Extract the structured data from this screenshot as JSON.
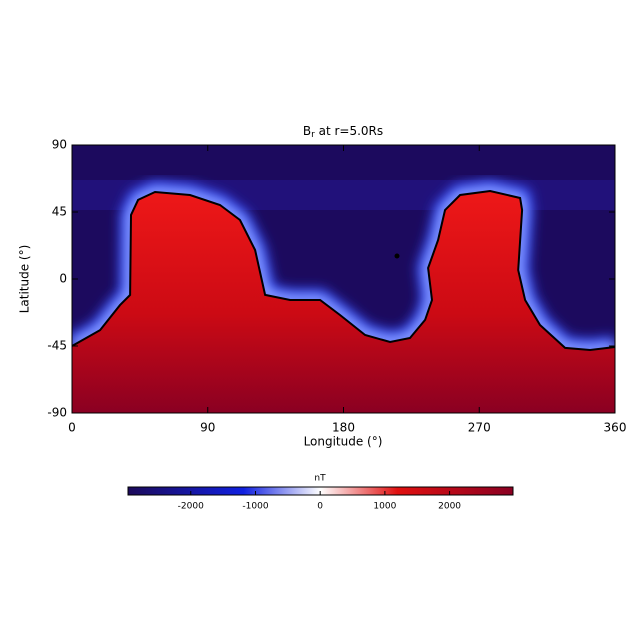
{
  "chart_data": {
    "type": "heatmap",
    "title": "B",
    "title_sub": "r",
    "title_rest": " at r=5.0Rs",
    "xlabel": "Longitude (°)",
    "ylabel": "Latitude (°)",
    "xlim": [
      0,
      360
    ],
    "ylim": [
      -90,
      90
    ],
    "xticks": [
      0,
      90,
      180,
      270,
      360
    ],
    "yticks": [
      -90,
      -45,
      0,
      45,
      90
    ],
    "contour_x": [
      0,
      18.6,
      31.8,
      38.5,
      39.1,
      43.8,
      55,
      78.2,
      98.1,
      111.4,
      121.4,
      128,
      144.6,
      164.5,
      177.7,
      194.3,
      210.9,
      224.1,
      234.1,
      238.7,
      236.1,
      242.7,
      247.3,
      257.3,
      277.2,
      297.1,
      298.4,
      295.8,
      300.4,
      310.3,
      326.9,
      343.5,
      360
    ],
    "contour_y": [
      -45,
      -34.3,
      -17.5,
      -10.7,
      43,
      53.1,
      58.4,
      56.4,
      49.7,
      39.6,
      19.5,
      -10.7,
      -14.1,
      -14.1,
      -24.2,
      -37.6,
      -42.3,
      -39.6,
      -27.5,
      -14.1,
      7.4,
      26.2,
      46.3,
      56.4,
      59.1,
      54.4,
      46.3,
      6,
      -14.1,
      -30.9,
      -46.3,
      -47.7,
      -45.7
    ],
    "colorbar": {
      "label": "nT",
      "lim": [
        -2970,
        2980
      ],
      "ticks": [
        -2000,
        -1000,
        0,
        1000,
        2000
      ]
    }
  }
}
